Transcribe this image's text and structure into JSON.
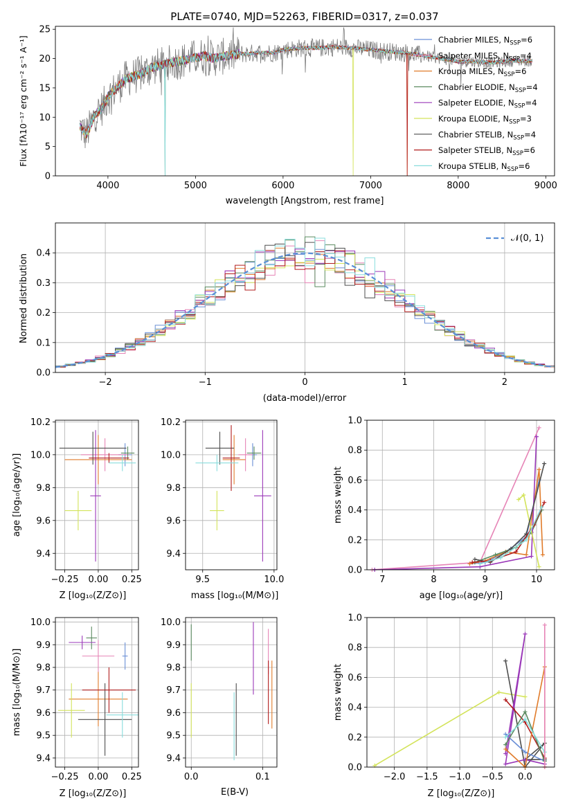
{
  "colors": {
    "Chabrier MILES": "#6a8fd6",
    "Salpeter MILES": "#e684b6",
    "Kroupa MILES": "#e07b2a",
    "Chabrier ELODIE": "#5a8a5f",
    "Salpeter ELODIE": "#9a37b8",
    "Kroupa ELODIE": "#d3e35a",
    "Chabrier STELIB": "#4d4d4d",
    "Salpeter STELIB": "#b11c1c",
    "Kroupa STELIB": "#88dddd",
    "normal": "#5a8fd6",
    "grid": "#b0b0b0"
  },
  "chart_data": [
    {
      "id": "spectrum",
      "type": "line",
      "title": "PLATE=0740, MJD=52263, FIBERID=0317, z=0.037",
      "xlabel": "wavelength [Angstrom, rest frame]",
      "ylabel": "Flux [fλ10⁻¹⁷ erg cm⁻² s⁻¹ A⁻¹]",
      "xlim": [
        3400,
        9100
      ],
      "ylim": [
        0,
        25.5
      ],
      "xticks": [
        4000,
        5000,
        6000,
        7000,
        8000,
        9000
      ],
      "yticks": [
        0,
        5,
        10,
        15,
        20,
        25
      ],
      "grid": false,
      "legend_position": "top-right",
      "legend": [
        {
          "name": "Chabrier MILES",
          "label": "Chabrier MILES, N",
          "sub": "SSP",
          "tail": "=6"
        },
        {
          "name": "Salpeter MILES",
          "label": "Salpeter MILES, N",
          "sub": "SSP",
          "tail": "=4"
        },
        {
          "name": "Kroupa MILES",
          "label": "Kroupa MILES, N",
          "sub": "SSP",
          "tail": "=6"
        },
        {
          "name": "Chabrier ELODIE",
          "label": "Chabrier ELODIE, N",
          "sub": "SSP",
          "tail": "=4"
        },
        {
          "name": "Salpeter ELODIE",
          "label": "Salpeter ELODIE, N",
          "sub": "SSP",
          "tail": "=4"
        },
        {
          "name": "Kroupa ELODIE",
          "label": "Kroupa ELODIE, N",
          "sub": "SSP",
          "tail": "=3"
        },
        {
          "name": "Chabrier STELIB",
          "label": "Chabrier STELIB, N",
          "sub": "SSP",
          "tail": "=4"
        },
        {
          "name": "Salpeter STELIB",
          "label": "Salpeter STELIB, N",
          "sub": "SSP",
          "tail": "=6"
        },
        {
          "name": "Kroupa STELIB",
          "label": "Kroupa STELIB, N",
          "sub": "SSP",
          "tail": "=6"
        }
      ],
      "continuum": {
        "x": [
          3680,
          3750,
          3800,
          3850,
          3900,
          3950,
          4000,
          4100,
          4200,
          4300,
          4400,
          4500,
          4600,
          4700,
          4800,
          4900,
          5000,
          5100,
          5200,
          5300,
          5400,
          5500,
          5600,
          5700,
          5800,
          5900,
          6000,
          6200,
          6400,
          6600,
          6800,
          7000,
          7200,
          7400,
          7600,
          7800,
          8000,
          8200,
          8400,
          8600,
          8850
        ],
        "y": [
          8.5,
          7.0,
          8.5,
          10.5,
          11.0,
          12.0,
          13.5,
          15.0,
          16.5,
          17.0,
          17.5,
          18.5,
          18.8,
          19.2,
          19.5,
          19.8,
          20.2,
          20.5,
          20.0,
          20.3,
          20.6,
          20.8,
          20.8,
          21.0,
          21.0,
          21.0,
          21.5,
          21.8,
          21.8,
          22.0,
          21.8,
          21.5,
          21.2,
          21.0,
          20.5,
          20.0,
          19.5,
          19.5,
          19.3,
          19.6,
          19.6
        ]
      },
      "dropouts": [
        {
          "name": "Kroupa STELIB",
          "at": 4650
        },
        {
          "name": "Chabrier ELODIE",
          "at": 4650
        },
        {
          "name": "Kroupa ELODIE",
          "at": 6800
        },
        {
          "name": "Salpeter STELIB",
          "at": 7420
        },
        {
          "name": "Kroupa MILES",
          "at": 7420
        }
      ]
    },
    {
      "id": "residuals",
      "type": "bar",
      "xlabel": "(data-model)/error",
      "ylabel": "Normed distribution",
      "xlim": [
        -2.5,
        2.5
      ],
      "ylim": [
        0,
        0.5
      ],
      "xticks": [
        -2,
        -1,
        0,
        1,
        2
      ],
      "yticks": [
        0.0,
        0.1,
        0.2,
        0.3,
        0.4
      ],
      "grid": true,
      "legend_position": "top-right",
      "curve_label": "𝒩(0, 1)",
      "bin_width": 0.1
    },
    {
      "id": "age-Z",
      "type": "scatter",
      "xlabel": "Z [log₁₀(Z/Z⊙)]",
      "ylabel": "age  [log₁₀(age/yr)]",
      "xlim": [
        -0.32,
        0.3
      ],
      "ylim": [
        9.3,
        10.21
      ],
      "xticks": [
        -0.25,
        0.0,
        0.25
      ],
      "xticklabels": [
        "−0.25",
        "0.00",
        "0.25"
      ],
      "yticks": [
        9.4,
        9.6,
        9.8,
        10.0,
        10.2
      ],
      "grid": true,
      "errorbars": [
        {
          "name": "Chabrier MILES",
          "x": 0.2,
          "xerr": 0.05,
          "y": 10.0,
          "yerr": 0.07
        },
        {
          "name": "Salpeter MILES",
          "x": 0.05,
          "xerr": 0.18,
          "y": 10.0,
          "yerr": 0.1
        },
        {
          "name": "Kroupa MILES",
          "x": 0.0,
          "xerr": 0.25,
          "y": 9.97,
          "yerr": 0.15
        },
        {
          "name": "Chabrier ELODIE",
          "x": 0.22,
          "xerr": 0.05,
          "y": 10.01,
          "yerr": 0.04
        },
        {
          "name": "Salpeter ELODIE",
          "x": -0.02,
          "xerr": 0.04,
          "y": 9.75,
          "yerr": 0.4
        },
        {
          "name": "Kroupa ELODIE",
          "x": -0.15,
          "xerr": 0.1,
          "y": 9.66,
          "yerr": 0.12
        },
        {
          "name": "Chabrier STELIB",
          "x": -0.04,
          "xerr": 0.25,
          "y": 10.04,
          "yerr": 0.1
        },
        {
          "name": "Salpeter STELIB",
          "x": 0.08,
          "xerr": 0.15,
          "y": 9.98,
          "yerr": 0.03
        },
        {
          "name": "Kroupa STELIB",
          "x": 0.18,
          "xerr": 0.1,
          "y": 9.95,
          "yerr": 0.05
        }
      ]
    },
    {
      "id": "age-mass",
      "type": "scatter",
      "xlabel": "mass [log₁₀(M/M⊙)]",
      "ylabel": "",
      "xlim": [
        9.38,
        10.02
      ],
      "ylim": [
        9.3,
        10.21
      ],
      "xticks": [
        9.5,
        10.0
      ],
      "xticklabels": [
        "9.5",
        "10.0"
      ],
      "yticks": [
        9.4,
        9.6,
        9.8,
        10.0,
        10.2
      ],
      "grid": true,
      "errorbars": [
        {
          "name": "Chabrier MILES",
          "x": 9.85,
          "xerr": 0.03,
          "y": 10.0,
          "yerr": 0.07
        },
        {
          "name": "Salpeter MILES",
          "x": 9.8,
          "xerr": 0.05,
          "y": 10.0,
          "yerr": 0.1
        },
        {
          "name": "Kroupa MILES",
          "x": 9.72,
          "xerr": 0.08,
          "y": 9.97,
          "yerr": 0.15
        },
        {
          "name": "Chabrier ELODIE",
          "x": 9.86,
          "xerr": 0.05,
          "y": 10.01,
          "yerr": 0.04
        },
        {
          "name": "Salpeter ELODIE",
          "x": 9.92,
          "xerr": 0.06,
          "y": 9.75,
          "yerr": 0.4
        },
        {
          "name": "Kroupa ELODIE",
          "x": 9.6,
          "xerr": 0.05,
          "y": 9.66,
          "yerr": 0.12
        },
        {
          "name": "Chabrier STELIB",
          "x": 9.62,
          "xerr": 0.1,
          "y": 10.04,
          "yerr": 0.1
        },
        {
          "name": "Salpeter STELIB",
          "x": 9.7,
          "xerr": 0.06,
          "y": 9.98,
          "yerr": 0.2
        },
        {
          "name": "Kroupa STELIB",
          "x": 9.6,
          "xerr": 0.15,
          "y": 9.95,
          "yerr": 0.05
        }
      ]
    },
    {
      "id": "weight-age",
      "type": "line",
      "xlabel": "age  [log₁₀(age/yr)]",
      "ylabel": "mass weight",
      "xlim": [
        6.7,
        10.35
      ],
      "ylim": [
        0,
        1.0
      ],
      "xticks": [
        7,
        8,
        9,
        10
      ],
      "yticks": [
        0.0,
        0.2,
        0.4,
        0.6,
        0.8,
        1.0
      ],
      "grid": true,
      "series": [
        {
          "name": "Chabrier MILES",
          "x": [
            8.7,
            9.0,
            9.4,
            9.8,
            10.05
          ],
          "y": [
            0.04,
            0.05,
            0.12,
            0.22,
            0.6
          ]
        },
        {
          "name": "Salpeter MILES",
          "x": [
            6.8,
            8.9,
            10.05
          ],
          "y": [
            0.0,
            0.05,
            0.95
          ]
        },
        {
          "name": "Kroupa MILES",
          "x": [
            8.7,
            9.0,
            9.4,
            9.8,
            10.05,
            10.12
          ],
          "y": [
            0.04,
            0.06,
            0.12,
            0.1,
            0.67,
            0.1
          ]
        },
        {
          "name": "Chabrier ELODIE",
          "x": [
            8.8,
            9.2,
            9.6,
            9.9,
            10.1
          ],
          "y": [
            0.05,
            0.1,
            0.15,
            0.25,
            0.4
          ]
        },
        {
          "name": "Salpeter ELODIE",
          "x": [
            6.85,
            8.9,
            9.9,
            10.0
          ],
          "y": [
            0.0,
            0.02,
            0.09,
            0.89
          ]
        },
        {
          "name": "Kroupa ELODIE",
          "x": [
            9.65,
            9.75,
            10.05
          ],
          "y": [
            0.47,
            0.5,
            0.02
          ]
        },
        {
          "name": "Chabrier STELIB",
          "x": [
            8.8,
            9.1,
            9.5,
            9.8,
            10.15
          ],
          "y": [
            0.07,
            0.05,
            0.14,
            0.24,
            0.71
          ]
        },
        {
          "name": "Salpeter STELIB",
          "x": [
            8.75,
            9.1,
            9.6,
            9.95,
            10.15
          ],
          "y": [
            0.05,
            0.06,
            0.12,
            0.3,
            0.45
          ]
        },
        {
          "name": "Kroupa STELIB",
          "x": [
            8.9,
            9.3,
            9.8,
            10.1
          ],
          "y": [
            0.04,
            0.08,
            0.2,
            0.42
          ]
        }
      ]
    },
    {
      "id": "mass-Z",
      "type": "scatter",
      "xlabel": "Z [log₁₀(Z/Z⊙)]",
      "ylabel": "mass [log₁₀(M/M⊙)]",
      "xlim": [
        -0.32,
        0.3
      ],
      "ylim": [
        9.36,
        10.02
      ],
      "xticks": [
        -0.25,
        0.0,
        0.25
      ],
      "xticklabels": [
        "−0.25",
        "0.00",
        "0.25"
      ],
      "yticks": [
        9.4,
        9.5,
        9.6,
        9.7,
        9.8,
        9.9,
        10.0
      ],
      "grid": true,
      "errorbars": [
        {
          "name": "Chabrier MILES",
          "x": 0.2,
          "xerr": 0.02,
          "y": 9.85,
          "yerr": 0.06
        },
        {
          "name": "Salpeter MILES",
          "x": 0.0,
          "xerr": 0.12,
          "y": 9.85,
          "yerr": 0.07
        },
        {
          "name": "Kroupa MILES",
          "x": 0.0,
          "xerr": 0.22,
          "y": 9.66,
          "yerr": 0.12
        },
        {
          "name": "Chabrier ELODIE",
          "x": -0.05,
          "xerr": 0.04,
          "y": 9.93,
          "yerr": 0.05
        },
        {
          "name": "Salpeter ELODIE",
          "x": -0.12,
          "xerr": 0.1,
          "y": 9.91,
          "yerr": 0.03
        },
        {
          "name": "Kroupa ELODIE",
          "x": -0.2,
          "xerr": 0.1,
          "y": 9.61,
          "yerr": 0.12
        },
        {
          "name": "Chabrier STELIB",
          "x": 0.05,
          "xerr": 0.2,
          "y": 9.57,
          "yerr": 0.16
        },
        {
          "name": "Salpeter STELIB",
          "x": 0.08,
          "xerr": 0.2,
          "y": 9.7,
          "yerr": 0.1
        },
        {
          "name": "Kroupa STELIB",
          "x": 0.18,
          "xerr": 0.12,
          "y": 9.59,
          "yerr": 0.1
        }
      ]
    },
    {
      "id": "mass-ebv",
      "type": "scatter",
      "xlabel": "E(B-V)",
      "ylabel": "",
      "xlim": [
        -0.008,
        0.12
      ],
      "ylim": [
        9.36,
        10.02
      ],
      "xticks": [
        0.0,
        0.1
      ],
      "xticklabels": [
        "0.0",
        "0.1"
      ],
      "yticks": [
        9.4,
        9.5,
        9.6,
        9.7,
        9.8,
        9.9,
        10.0
      ],
      "grid": true,
      "errorbars": [
        {
          "name": "Chabrier ELODIE",
          "x": 0.0,
          "xerr": 0.0,
          "y": 9.91,
          "yerr": 0.08
        },
        {
          "name": "Kroupa ELODIE",
          "x": 0.0,
          "xerr": 0.0,
          "y": 9.61,
          "yerr": 0.12
        },
        {
          "name": "Chabrier STELIB",
          "x": 0.063,
          "xerr": 0.0,
          "y": 9.57,
          "yerr": 0.16
        },
        {
          "name": "Kroupa STELIB",
          "x": 0.06,
          "xerr": 0.0,
          "y": 9.54,
          "yerr": 0.15
        },
        {
          "name": "Salpeter ELODIE",
          "x": 0.087,
          "xerr": 0.0,
          "y": 9.84,
          "yerr": 0.16
        },
        {
          "name": "Salpeter MILES",
          "x": 0.108,
          "xerr": 0.0,
          "y": 9.87,
          "yerr": 0.1
        },
        {
          "name": "Salpeter STELIB",
          "x": 0.108,
          "xerr": 0.0,
          "y": 9.69,
          "yerr": 0.14
        },
        {
          "name": "Kroupa MILES",
          "x": 0.113,
          "xerr": 0.0,
          "y": 9.68,
          "yerr": 0.15
        }
      ]
    },
    {
      "id": "weight-Z",
      "type": "line",
      "xlabel": "Z [log₁₀(Z/Z⊙)]",
      "ylabel": "mass weight",
      "xlim": [
        -2.42,
        0.45
      ],
      "ylim": [
        0,
        1.0
      ],
      "xticks": [
        -2.0,
        -1.5,
        -1.0,
        -0.5,
        0.0
      ],
      "xticklabels": [
        "−2.0",
        "−1.5",
        "−1.0",
        "−0.5",
        "0.0"
      ],
      "yticks": [
        0.0,
        0.2,
        0.4,
        0.6,
        0.8,
        1.0
      ],
      "grid": true,
      "series": [
        {
          "name": "Kroupa ELODIE",
          "x": [
            -2.3,
            -0.4,
            0.0
          ],
          "y": [
            0.01,
            0.5,
            0.47
          ]
        },
        {
          "name": "Chabrier STELIB",
          "x": [
            -0.3,
            0.0,
            0.3,
            0.0,
            0.3
          ],
          "y": [
            0.71,
            0.0,
            0.16,
            0.05,
            0.05
          ]
        },
        {
          "name": "Salpeter ELODIE",
          "x": [
            -0.3,
            0.0,
            -0.3,
            0.0,
            0.3
          ],
          "y": [
            0.09,
            0.89,
            0.02,
            0.05,
            0.02
          ]
        },
        {
          "name": "Salpeter STELIB",
          "x": [
            -0.3,
            0.0,
            0.3
          ],
          "y": [
            0.45,
            0.3,
            0.06
          ]
        },
        {
          "name": "Chabrier MILES",
          "x": [
            -0.3,
            0.0,
            0.3
          ],
          "y": [
            0.22,
            0.1,
            0.04
          ]
        },
        {
          "name": "Kroupa MILES",
          "x": [
            -0.3,
            0.0,
            0.3,
            0.3
          ],
          "y": [
            0.12,
            0.0,
            0.67,
            0.0
          ]
        },
        {
          "name": "Chabrier ELODIE",
          "x": [
            -0.3,
            0.0,
            0.3
          ],
          "y": [
            0.15,
            0.37,
            0.04
          ]
        },
        {
          "name": "Kroupa STELIB",
          "x": [
            -0.3,
            0.0,
            0.3
          ],
          "y": [
            0.2,
            0.32,
            0.1
          ]
        },
        {
          "name": "Salpeter MILES",
          "x": [
            0.3,
            0.3
          ],
          "y": [
            0.0,
            0.95
          ]
        }
      ]
    }
  ]
}
